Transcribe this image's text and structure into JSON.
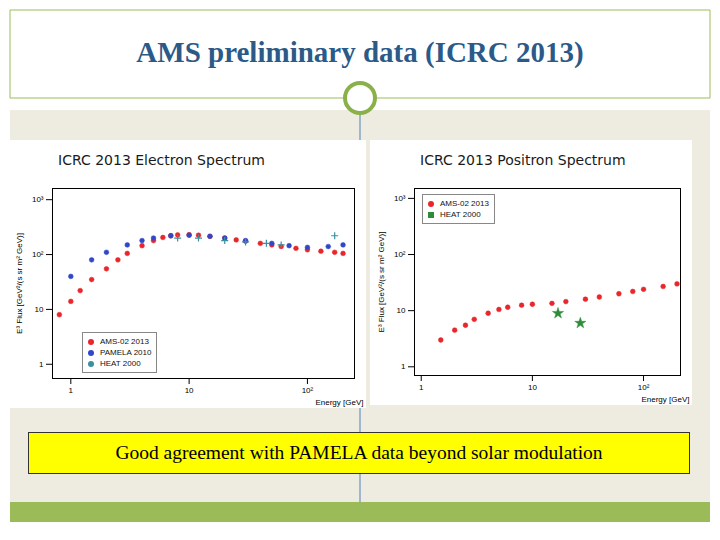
{
  "title": "AMS preliminary data (ICRC 2013)",
  "caption": "Good agreement with PAMELA data beyond solar modulation",
  "chart_data": [
    {
      "type": "scatter",
      "title": "ICRC 2013 Electron Spectrum",
      "x_label": "Energy [GeV]",
      "y_label": "E³ Flux [GeV²/(s sr m² GeV)]",
      "log": true,
      "grid": false,
      "legend": "bottom-left",
      "xlim": [
        0.7,
        250
      ],
      "ylim": [
        0.55,
        1600
      ],
      "xticks": [
        1,
        10,
        {
          "value": 100,
          "label": "10²"
        }
      ],
      "yticks": [
        1,
        10,
        {
          "value": 100,
          "label": "10²"
        },
        {
          "value": 1000,
          "label": "10³"
        }
      ],
      "series": [
        {
          "name": "AMS-02 2013",
          "color": "#e8262b",
          "marker": "circle",
          "x": [
            0.8,
            1,
            1.2,
            1.5,
            2,
            2.5,
            3,
            4,
            5,
            6,
            7,
            8,
            10,
            12,
            15,
            20,
            25,
            30,
            40,
            50,
            60,
            80,
            100,
            130,
            170,
            200
          ],
          "values": [
            8,
            14,
            22,
            35,
            55,
            80,
            105,
            145,
            180,
            205,
            220,
            228,
            230,
            225,
            215,
            200,
            185,
            175,
            160,
            150,
            140,
            130,
            122,
            115,
            110,
            105
          ]
        },
        {
          "name": "PAMELA 2010",
          "color": "#3048c8",
          "marker": "circle",
          "x": [
            1,
            1.5,
            2,
            3,
            4,
            5,
            7,
            10,
            15,
            20,
            30,
            50,
            70,
            100,
            150,
            200
          ],
          "values": [
            40,
            80,
            110,
            150,
            180,
            200,
            220,
            225,
            215,
            200,
            180,
            160,
            145,
            135,
            140,
            150
          ]
        },
        {
          "name": "HEAT 2000",
          "color": "#3a8fa0",
          "marker": "plus",
          "x": [
            8,
            12,
            20,
            30,
            45,
            60,
            170
          ],
          "values": [
            200,
            200,
            180,
            170,
            160,
            150,
            220
          ]
        }
      ]
    },
    {
      "type": "scatter",
      "title": "ICRC 2013 Positron Spectrum",
      "x_label": "Energy [GeV]",
      "y_label": "E³ Flux [GeV²/(s sr m² GeV)]",
      "log": true,
      "grid": false,
      "legend": "top-left",
      "xlim": [
        0.87,
        215
      ],
      "ylim": [
        0.7,
        1500
      ],
      "xticks": [
        1,
        10,
        {
          "value": 100,
          "label": "10²"
        }
      ],
      "yticks": [
        1,
        10,
        {
          "value": 100,
          "label": "10²"
        },
        {
          "value": 1000,
          "label": "10³"
        }
      ],
      "series": [
        {
          "name": "AMS-02 2013",
          "color": "#e8262b",
          "marker": "circle",
          "x": [
            1.5,
            2,
            2.5,
            3,
            4,
            5,
            6,
            8,
            10,
            15,
            20,
            30,
            40,
            60,
            80,
            100,
            150,
            200
          ],
          "values": [
            3,
            4.5,
            5.5,
            7,
            9,
            10.5,
            11.5,
            12.5,
            13,
            13.5,
            14.5,
            16,
            17.5,
            20,
            22,
            24,
            27,
            30
          ]
        },
        {
          "name": "HEAT 2000",
          "color": "#2e8b3a",
          "marker": "star",
          "x": [
            17,
            27
          ],
          "values": [
            9,
            6
          ]
        }
      ]
    }
  ]
}
